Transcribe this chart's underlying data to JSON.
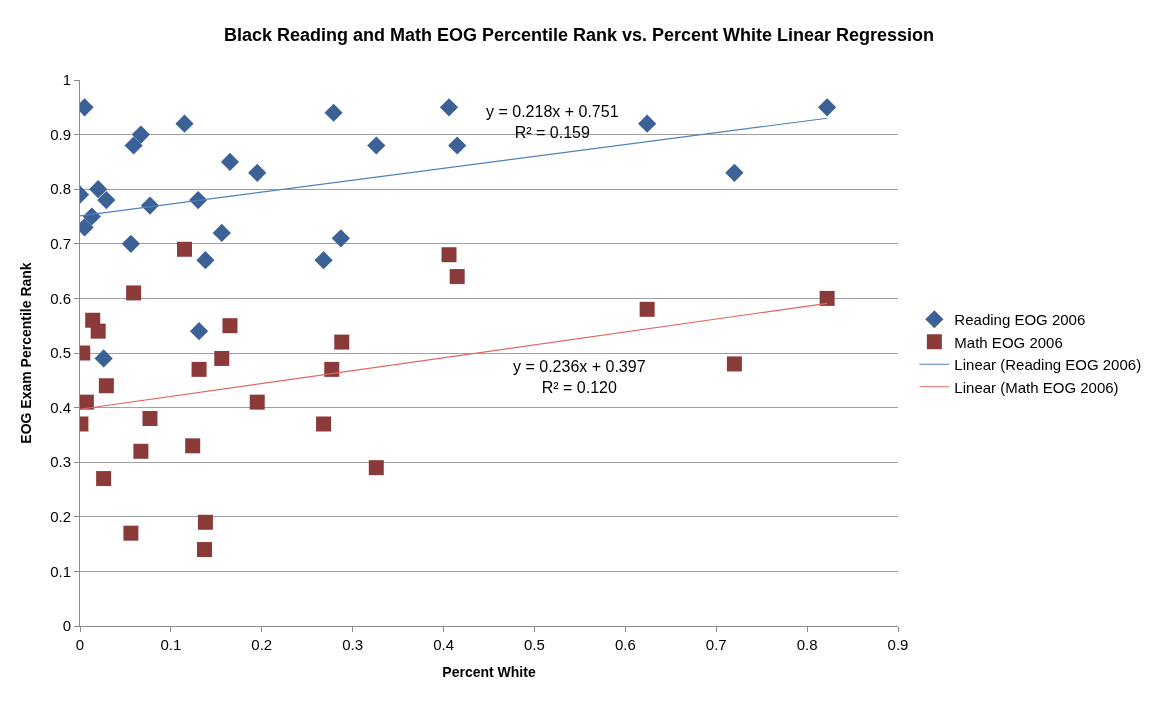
{
  "chart_data": {
    "type": "scatter",
    "title": "Black Reading and Math EOG Percentile Rank vs. Percent White Linear Regression",
    "xlabel": "Percent White",
    "ylabel": "EOG Exam Percentile Rank",
    "xlim": [
      0,
      0.9
    ],
    "xticks": [
      0,
      0.1,
      0.2,
      0.3,
      0.4,
      0.5,
      0.6,
      0.7,
      0.8,
      0.9
    ],
    "ylim": [
      0,
      1
    ],
    "yticks": [
      0,
      0.1,
      0.2,
      0.3,
      0.4,
      0.5,
      0.6,
      0.7,
      0.8,
      0.9,
      1
    ],
    "grid": "y",
    "legend": "right",
    "series": [
      {
        "name": "Reading EOG 2006",
        "color": "#3b6196",
        "marker": "diamond",
        "x": [
          0.005,
          0,
          0.005,
          0.013,
          0.02,
          0.029,
          0.059,
          0.067,
          0.056,
          0.077,
          0.115,
          0.13,
          0.138,
          0.131,
          0.026,
          0.165,
          0.195,
          0.156,
          0.268,
          0.287,
          0.279,
          0.326,
          0.406,
          0.415,
          0.624,
          0.72,
          0.822
        ],
        "values": [
          0.95,
          0.79,
          0.73,
          0.75,
          0.8,
          0.78,
          0.88,
          0.9,
          0.7,
          0.77,
          0.92,
          0.78,
          0.67,
          0.54,
          0.49,
          0.85,
          0.83,
          0.72,
          0.67,
          0.71,
          0.94,
          0.88,
          0.95,
          0.88,
          0.92,
          0.83,
          0.95
        ]
      },
      {
        "name": "Math EOG 2006",
        "color": "#8b3a3a",
        "marker": "square",
        "x": [
          0.115,
          0.059,
          0.014,
          0.02,
          0.003,
          0.029,
          0.007,
          0.001,
          0.077,
          0.067,
          0.026,
          0.056,
          0.137,
          0.138,
          0.124,
          0.131,
          0.156,
          0.165,
          0.195,
          0.268,
          0.277,
          0.288,
          0.326,
          0.406,
          0.415,
          0.624,
          0.72,
          0.822
        ],
        "values": [
          0.69,
          0.61,
          0.56,
          0.54,
          0.5,
          0.44,
          0.41,
          0.37,
          0.38,
          0.32,
          0.27,
          0.17,
          0.14,
          0.19,
          0.33,
          0.47,
          0.49,
          0.55,
          0.41,
          0.37,
          0.47,
          0.52,
          0.29,
          0.68,
          0.64,
          0.58,
          0.48,
          0.6
        ]
      },
      {
        "name": "Linear (Reading EOG 2006)",
        "type": "line",
        "color": "#4f81bd",
        "marker": "none",
        "x": [
          0,
          0.822
        ],
        "values": [
          0.751,
          0.93
        ]
      },
      {
        "name": "Linear (Math EOG 2006)",
        "type": "line",
        "color": "#e0675f",
        "marker": "none",
        "x": [
          0,
          0.822
        ],
        "values": [
          0.397,
          0.591
        ]
      }
    ],
    "annotations": [
      "y = 0.218x + 0.751\nR² = 0.159",
      "y = 0.236x + 0.397\nR² = 0.120"
    ]
  }
}
